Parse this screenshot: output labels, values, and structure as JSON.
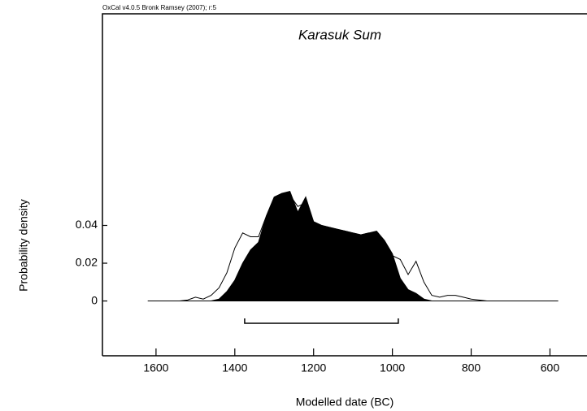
{
  "chart_data": {
    "type": "area",
    "header": "OxCal v4.0.5 Bronk Ramsey (2007); r:5",
    "title": "Karasuk Sum",
    "xlabel": "Modelled date (BC)",
    "ylabel": "Probability density",
    "x": [
      1620,
      1600,
      1580,
      1560,
      1540,
      1520,
      1500,
      1480,
      1460,
      1440,
      1420,
      1400,
      1380,
      1360,
      1340,
      1320,
      1300,
      1280,
      1260,
      1240,
      1220,
      1200,
      1180,
      1160,
      1140,
      1120,
      1100,
      1080,
      1060,
      1040,
      1020,
      1000,
      980,
      960,
      940,
      920,
      900,
      880,
      860,
      840,
      820,
      800,
      780,
      760,
      740,
      720,
      700,
      680,
      660,
      640,
      620,
      600,
      580
    ],
    "series": [
      {
        "color": "#000000",
        "filled": true,
        "values": [
          0,
          0,
          0,
          0,
          0,
          0,
          0,
          0,
          0,
          0.001,
          0.005,
          0.011,
          0.02,
          0.027,
          0.031,
          0.045,
          0.055,
          0.057,
          0.058,
          0.047,
          0.055,
          0.042,
          0.04,
          0.039,
          0.038,
          0.037,
          0.036,
          0.035,
          0.036,
          0.037,
          0.032,
          0.025,
          0.012,
          0.006,
          0.004,
          0.001,
          0,
          0,
          0,
          0,
          0,
          0,
          0,
          0,
          0,
          0,
          0,
          0,
          0,
          0,
          0,
          0,
          0
        ]
      },
      {
        "color": "#000000",
        "filled": false,
        "values": [
          0,
          0,
          0,
          0,
          0,
          0.0005,
          0.002,
          0.001,
          0.003,
          0.007,
          0.015,
          0.028,
          0.036,
          0.034,
          0.034,
          0.045,
          0.055,
          0.057,
          0.056,
          0.05,
          0.052,
          0.042,
          0.04,
          0.039,
          0.038,
          0.037,
          0.036,
          0.035,
          0.036,
          0.034,
          0.03,
          0.024,
          0.022,
          0.014,
          0.021,
          0.01,
          0.003,
          0.002,
          0.003,
          0.003,
          0.002,
          0.001,
          0.0005,
          0,
          0,
          0,
          0,
          0,
          0,
          0,
          0,
          0,
          0
        ]
      }
    ],
    "range": [
      1375,
      985
    ],
    "xlim": [
      1736,
      506
    ],
    "ylim": [
      -0.029,
      0.152
    ],
    "xticks": [
      1600,
      1400,
      1200,
      1000,
      800,
      600
    ],
    "yticks": [
      0,
      0.02,
      0.04
    ]
  }
}
